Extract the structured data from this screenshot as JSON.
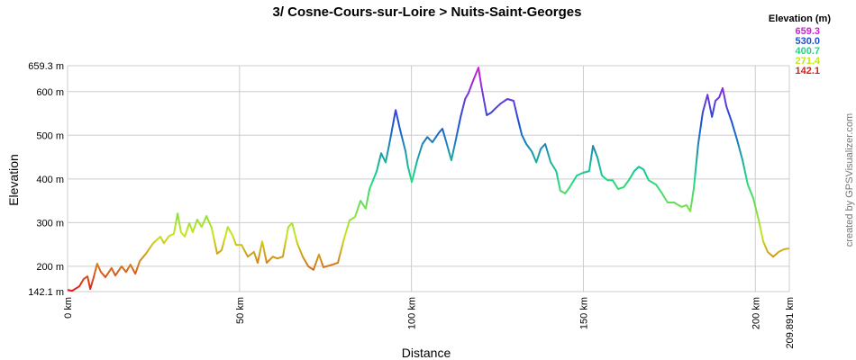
{
  "chart_data": {
    "type": "line",
    "title": "3/ Cosne-Cours-sur-Loire > Nuits-Saint-Georges",
    "xlabel": "Distance",
    "ylabel": "Elevation",
    "credit": "created by GPSVisualizer.com",
    "legend": {
      "title": "Elevation (m)",
      "items": [
        {
          "value": 659.3,
          "label": "659.3",
          "color": "#d81ad8"
        },
        {
          "value": 530,
          "label": "530.0",
          "color": "#1a4fd8"
        },
        {
          "value": 400.7,
          "label": "400.7",
          "color": "#1ad884"
        },
        {
          "value": 271.4,
          "label": "271.4",
          "color": "#c8e61a"
        },
        {
          "value": 142.1,
          "label": "142.1",
          "color": "#e01a1a"
        }
      ]
    },
    "xlim": [
      0,
      209.891
    ],
    "ylim": [
      142.1,
      659.3
    ],
    "xticks": [
      {
        "value": 0,
        "label": "0 km"
      },
      {
        "value": 50,
        "label": "50 km"
      },
      {
        "value": 100,
        "label": "100 km"
      },
      {
        "value": 150,
        "label": "150 km"
      },
      {
        "value": 200,
        "label": "200 km"
      },
      {
        "value": 209.891,
        "label": "209.891 km"
      }
    ],
    "yticks": [
      {
        "value": 142.1,
        "label": "142.1 m"
      },
      {
        "value": 200,
        "label": "200 m"
      },
      {
        "value": 300,
        "label": "300 m"
      },
      {
        "value": 400,
        "label": "400 m"
      },
      {
        "value": 500,
        "label": "500 m"
      },
      {
        "value": 600,
        "label": "600 m"
      },
      {
        "value": 659.3,
        "label": "659.3 m"
      }
    ],
    "grid": true,
    "x": [
      0,
      1.3,
      3.4,
      4.7,
      5.8,
      6.6,
      7.6,
      8.6,
      9.7,
      11,
      12.8,
      13.9,
      15.7,
      17,
      18.3,
      19.7,
      21,
      22.8,
      24.9,
      27,
      28,
      29.6,
      30.9,
      32,
      33,
      34.1,
      35.4,
      36.4,
      37.7,
      39,
      40.4,
      41.9,
      43.5,
      44.8,
      46.6,
      48,
      49,
      50.6,
      52.4,
      54.2,
      55.3,
      56.6,
      57.9,
      59.7,
      61,
      62.6,
      64.2,
      65.3,
      66.8,
      68.4,
      70,
      71.5,
      73.1,
      74.4,
      76.3,
      78.6,
      80.5,
      82,
      83.6,
      85.2,
      86.7,
      87.8,
      89.9,
      91.2,
      92.5,
      93.8,
      95.4,
      96.7,
      98.3,
      99,
      100.1,
      101.7,
      103.2,
      104.6,
      106.1,
      107.9,
      109,
      110.3,
      111.6,
      112.9,
      114.3,
      115.6,
      116.6,
      117.9,
      119.5,
      120.3,
      121.9,
      123.2,
      124.5,
      126,
      127.9,
      129.7,
      130.8,
      132.1,
      133.4,
      135,
      136.3,
      137.6,
      138.9,
      140.5,
      142.1,
      143.3,
      144.7,
      146,
      148.1,
      149.9,
      151.7,
      152.8,
      154.1,
      155.4,
      157,
      158.5,
      160.1,
      161.7,
      163.2,
      164.8,
      166.1,
      167.5,
      169,
      171.1,
      172.7,
      174.5,
      176.4,
      178.5,
      180,
      181.1,
      182.1,
      183.4,
      184.7,
      186.1,
      187.4,
      188.4,
      189.5,
      190.5,
      191.6,
      193.1,
      194.7,
      196.3,
      197.8,
      199.4,
      201,
      202.3,
      203.6,
      205.2,
      206.8,
      208.3,
      209.891
    ],
    "values": [
      146,
      144,
      154,
      171,
      177,
      148,
      175,
      206,
      187,
      175,
      196,
      179,
      200,
      187,
      204,
      183,
      212,
      229,
      253,
      268,
      253,
      270,
      274,
      321,
      278,
      268,
      299,
      278,
      307,
      290,
      315,
      288,
      229,
      237,
      290,
      270,
      249,
      249,
      222,
      233,
      208,
      257,
      208,
      222,
      218,
      222,
      290,
      299,
      253,
      222,
      200,
      192,
      227,
      198,
      202,
      208,
      266,
      305,
      313,
      350,
      332,
      377,
      418,
      459,
      438,
      490,
      558,
      513,
      463,
      428,
      393,
      443,
      480,
      496,
      484,
      505,
      515,
      480,
      443,
      490,
      542,
      583,
      597,
      624,
      655,
      614,
      546,
      552,
      562,
      573,
      583,
      579,
      542,
      501,
      480,
      463,
      438,
      469,
      480,
      438,
      418,
      373,
      367,
      381,
      408,
      414,
      418,
      476,
      449,
      408,
      397,
      397,
      377,
      381,
      397,
      418,
      428,
      422,
      397,
      387,
      369,
      346,
      346,
      336,
      340,
      326,
      377,
      480,
      552,
      593,
      542,
      579,
      587,
      608,
      566,
      532,
      490,
      443,
      387,
      356,
      305,
      257,
      233,
      222,
      233,
      239,
      241
    ]
  }
}
